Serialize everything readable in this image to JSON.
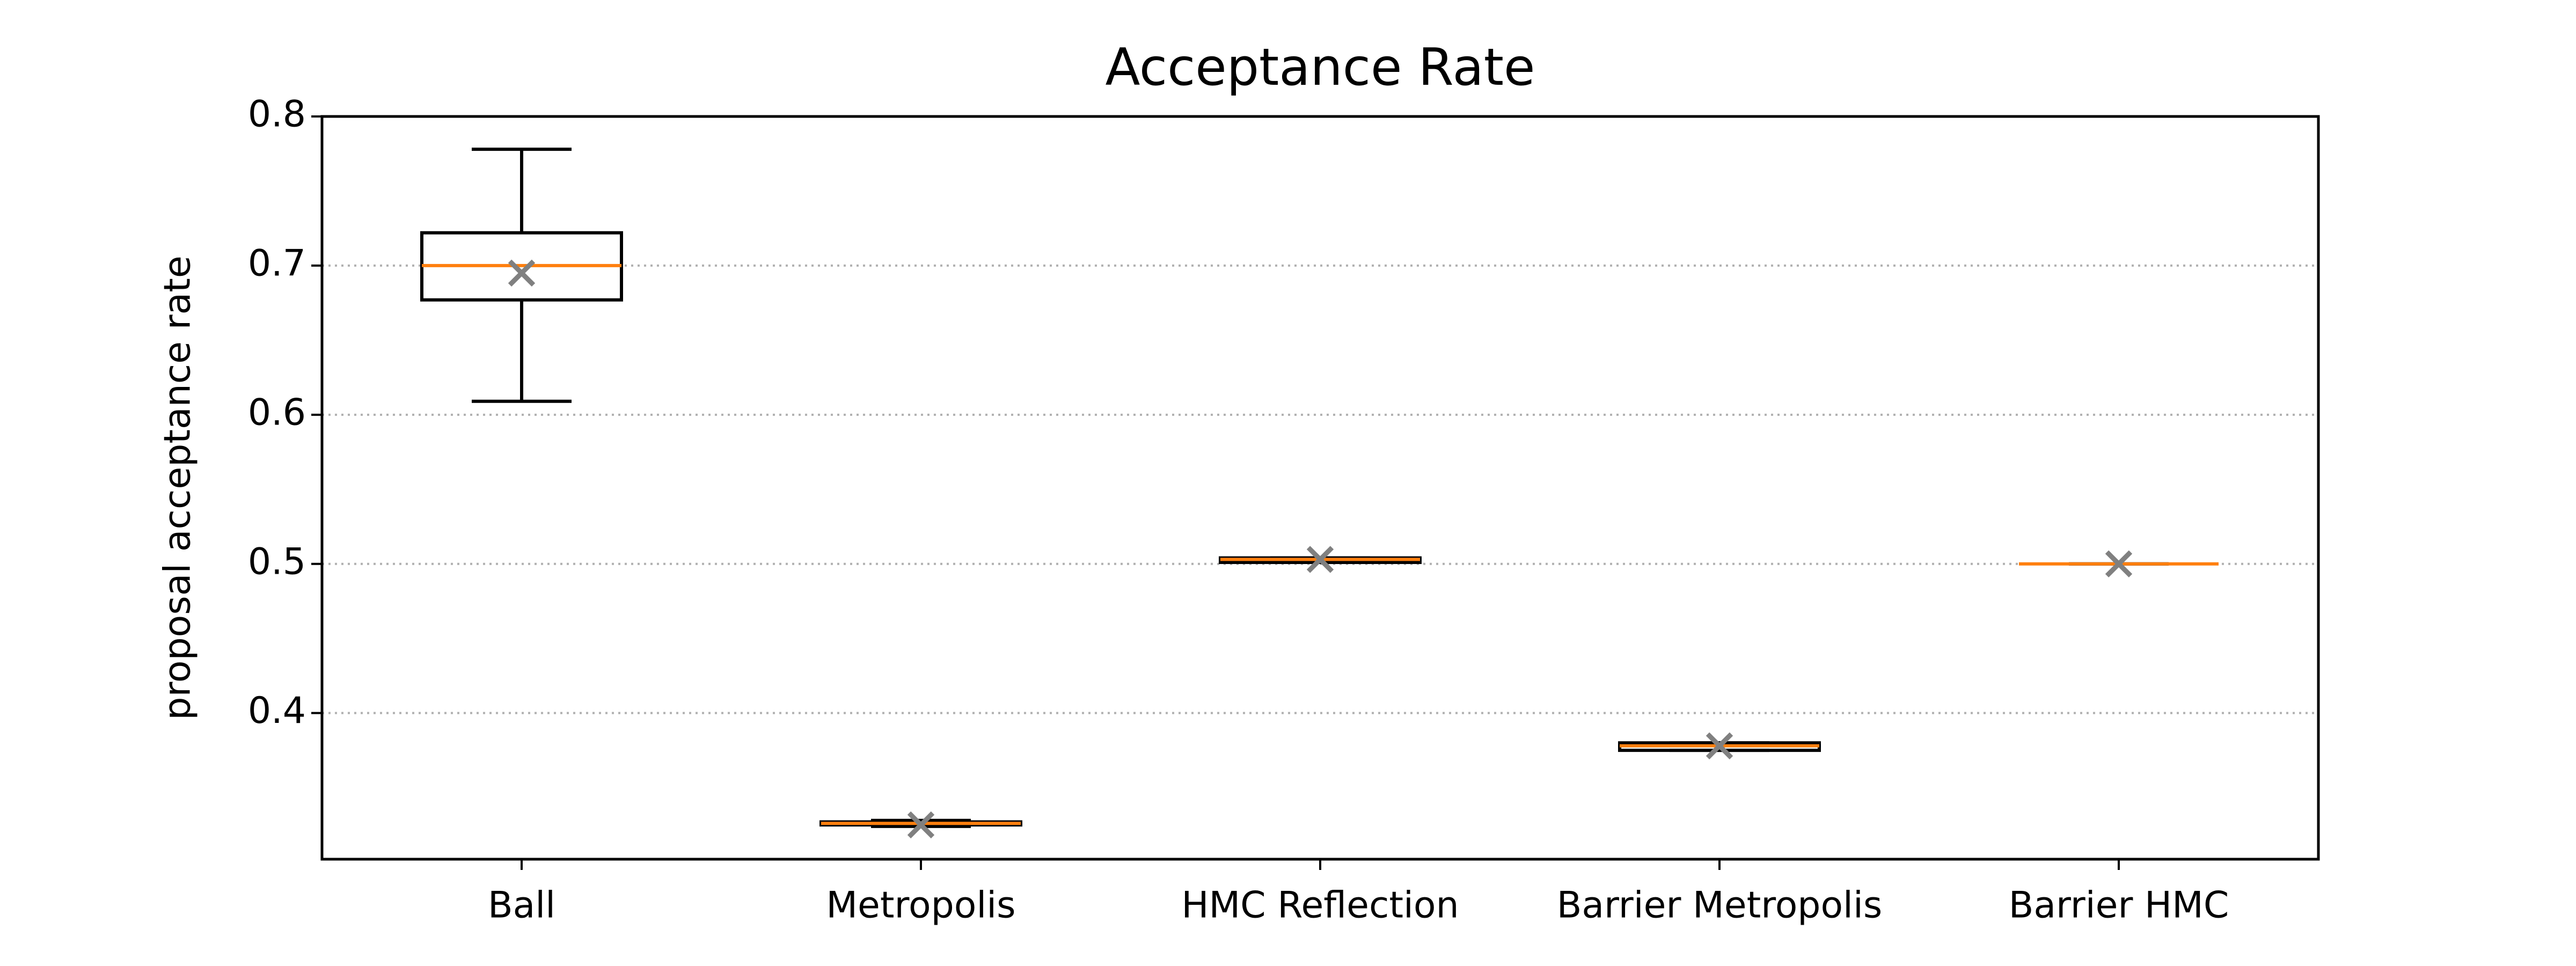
{
  "chart_data": {
    "type": "box",
    "title": "Acceptance Rate",
    "ylabel": "proposal acceptance rate",
    "categories": [
      "Ball",
      "Metropolis",
      "HMC Reflection",
      "Barrier Metropolis",
      "Barrier HMC"
    ],
    "boxes": [
      {
        "low": 0.609,
        "q1": 0.677,
        "median": 0.7,
        "q3": 0.722,
        "high": 0.778,
        "mean": 0.695
      },
      {
        "low": 0.324,
        "q1": 0.325,
        "median": 0.326,
        "q3": 0.327,
        "high": 0.328,
        "mean": 0.325
      },
      {
        "low": 0.501,
        "q1": 0.501,
        "median": 0.503,
        "q3": 0.504,
        "high": 0.504,
        "mean": 0.503
      },
      {
        "low": 0.375,
        "q1": 0.375,
        "median": 0.378,
        "q3": 0.38,
        "high": 0.38,
        "mean": 0.378
      },
      {
        "low": 0.5,
        "q1": 0.5,
        "median": 0.5,
        "q3": 0.5,
        "high": 0.5,
        "mean": 0.5
      }
    ],
    "box_color": "#000000",
    "median_color": "#ff7f0e",
    "mean_color": "#808080",
    "ylim": [
      0.302,
      0.8
    ],
    "yticks": [
      0.4,
      0.5,
      0.6,
      0.7,
      0.8
    ],
    "grid": true
  }
}
